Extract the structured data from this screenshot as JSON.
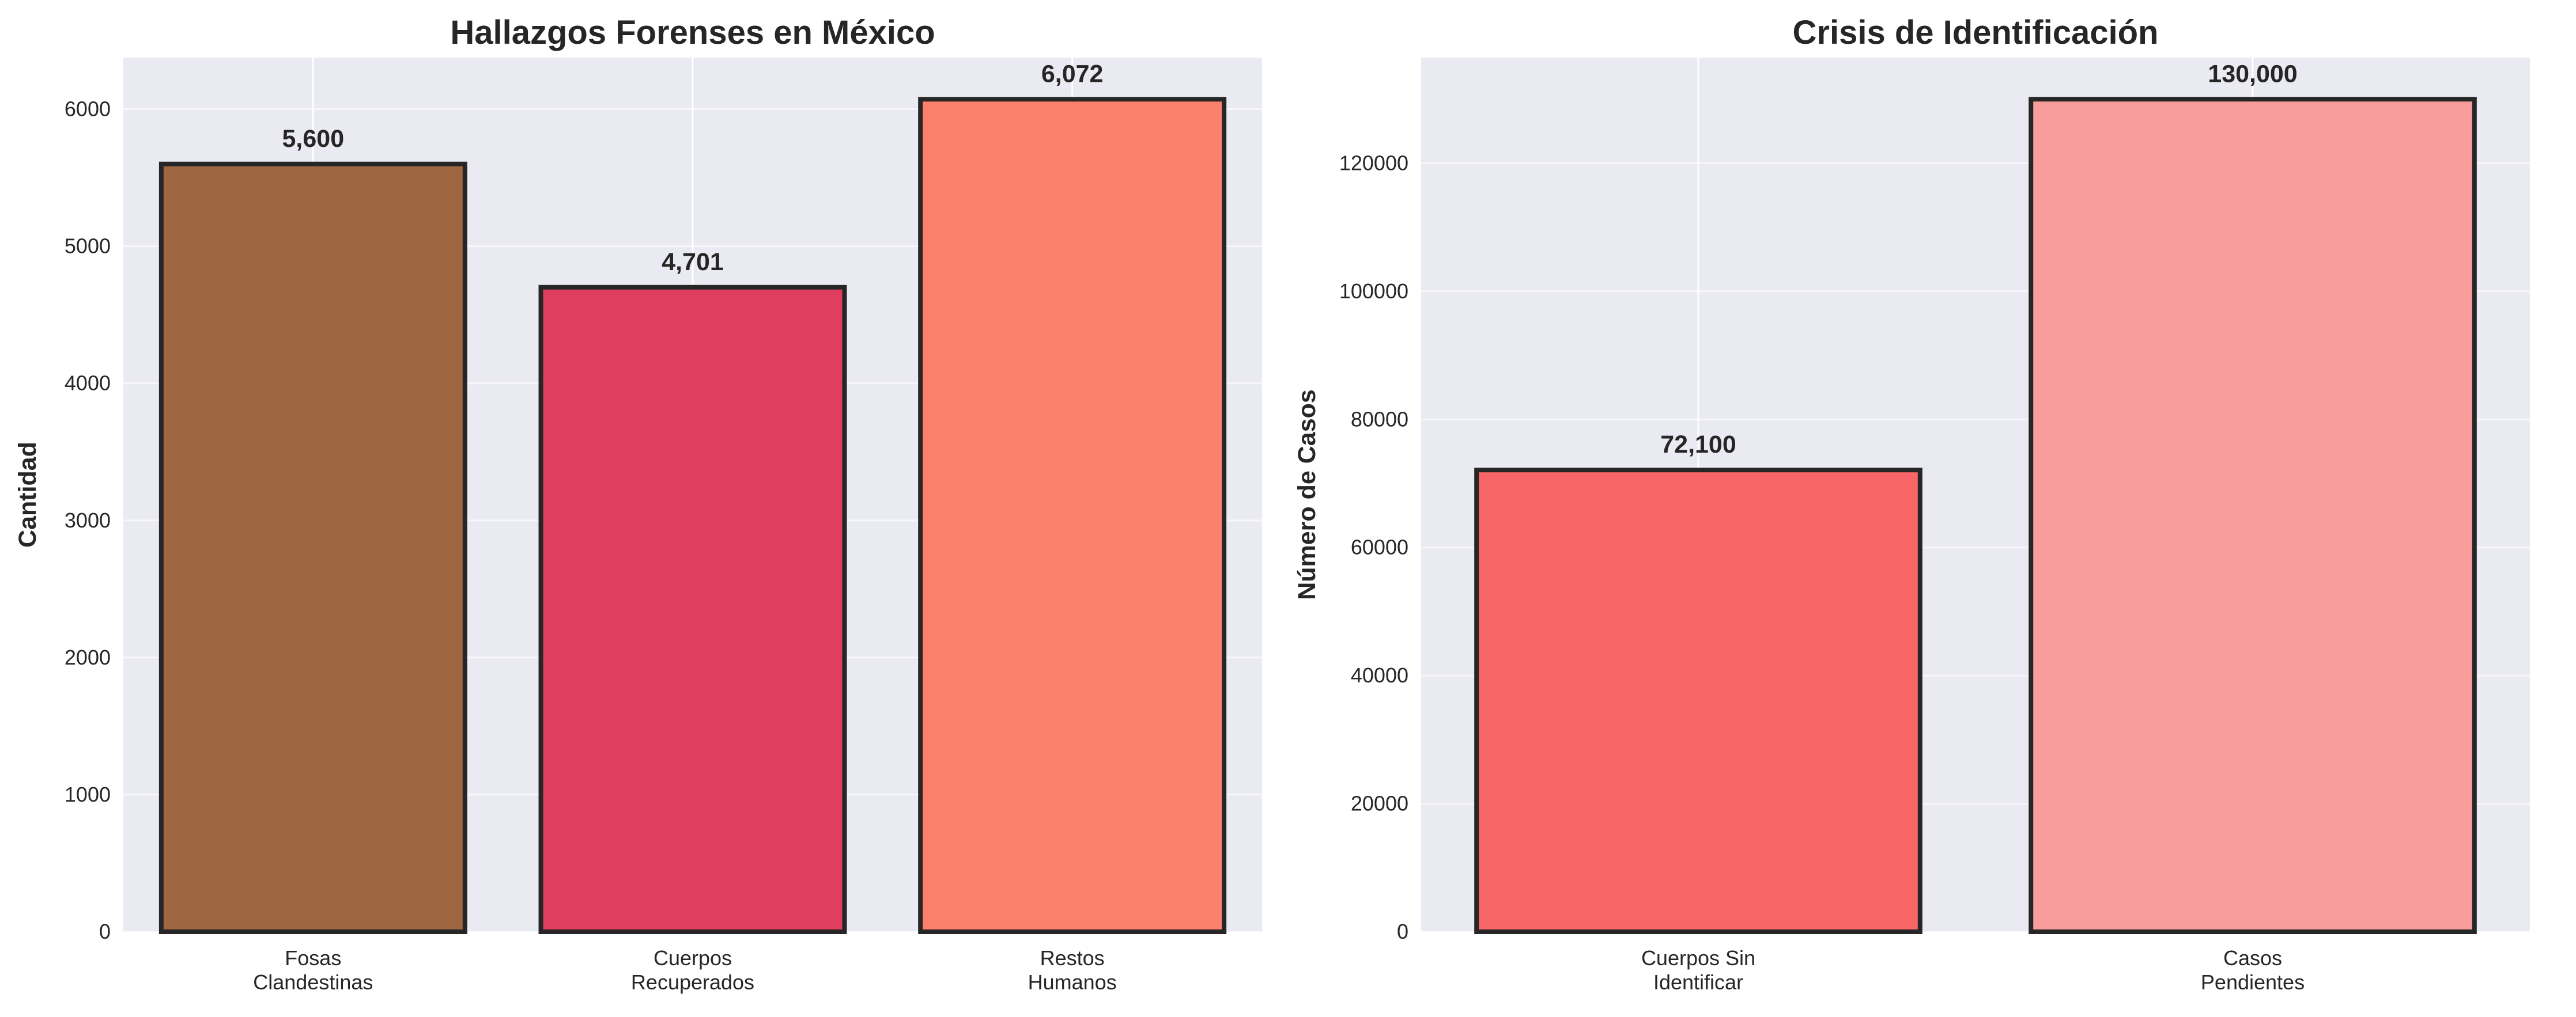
{
  "chart_data": [
    {
      "type": "bar",
      "title": "Hallazgos Forenses en México",
      "xlabel": "",
      "ylabel": "Cantidad",
      "categories": [
        "Fosas\nClandestinas",
        "Cuerpos\nRecuperados",
        "Restos\nHumanos"
      ],
      "values": [
        5600,
        4701,
        6072
      ],
      "data_labels": [
        "5,600",
        "4,701",
        "6,072"
      ],
      "colors": [
        "#9E6641",
        "#DF3E5E",
        "#FC806C"
      ],
      "ylim": [
        0,
        6376
      ],
      "yticks": [
        0,
        1000,
        2000,
        3000,
        4000,
        5000,
        6000
      ],
      "grid": true
    },
    {
      "type": "bar",
      "title": "Crisis de Identificación",
      "xlabel": "",
      "ylabel": "Número de Casos",
      "categories": [
        "Cuerpos Sin\nIdentificar",
        "Casos\nPendientes"
      ],
      "values": [
        72100,
        130000
      ],
      "data_labels": [
        "72,100",
        "130,000"
      ],
      "colors": [
        "#F96668",
        "#F99C9C"
      ],
      "ylim": [
        0,
        136500
      ],
      "yticks": [
        0,
        20000,
        40000,
        60000,
        80000,
        100000,
        120000
      ],
      "grid": true
    }
  ],
  "style": {
    "background": "#EAEAF2",
    "grid_color": "#FFFFFF",
    "edge_color": "#262626"
  }
}
